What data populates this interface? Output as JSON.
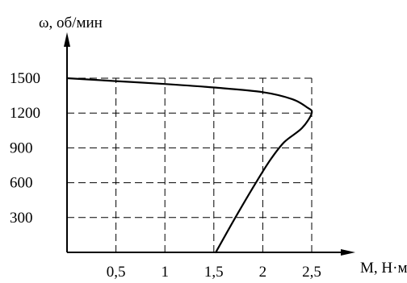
{
  "chart_data": {
    "type": "line",
    "title": "",
    "ylabel": "ω, об/мин",
    "xlabel": "M, Н·м",
    "x_ticks": [
      "0,5",
      "1",
      "1,5",
      "2",
      "2,5"
    ],
    "y_ticks": [
      "300",
      "600",
      "900",
      "1200",
      "1500"
    ],
    "xlim": [
      0,
      2.5
    ],
    "ylim": [
      0,
      1500
    ],
    "grid": true,
    "grid_style": "dashed",
    "series": [
      {
        "points": [
          [
            0.0,
            1500
          ],
          [
            0.5,
            1475
          ],
          [
            1.0,
            1450
          ],
          [
            1.5,
            1420
          ],
          [
            2.0,
            1380
          ],
          [
            2.3,
            1320
          ],
          [
            2.45,
            1250
          ],
          [
            2.5,
            1200
          ],
          [
            2.4,
            1070
          ],
          [
            2.22,
            950
          ],
          [
            2.08,
            800
          ],
          [
            1.93,
            600
          ],
          [
            1.72,
            300
          ],
          [
            1.52,
            0
          ]
        ]
      }
    ]
  }
}
